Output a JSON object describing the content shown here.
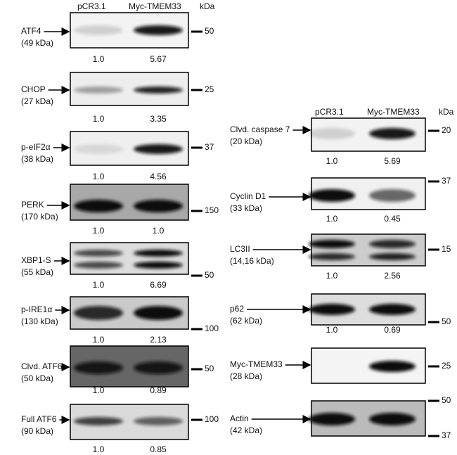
{
  "header": {
    "left_lanes": [
      "pCR3.1",
      "Myc-TMEM33"
    ],
    "left_unit": "kDa",
    "right_lanes": [
      "pCR3.1",
      "Myc-TMEM33"
    ],
    "right_unit": "kDa"
  },
  "left_blots": [
    {
      "protein": "ATF4",
      "size": "(49 kDa)",
      "markers": [
        "50"
      ],
      "quantities": [
        "1.0",
        "5.67"
      ]
    },
    {
      "protein": "CHOP",
      "size": "(27 kDa)",
      "markers": [
        "25"
      ],
      "quantities": [
        "1.0",
        "3.35"
      ]
    },
    {
      "protein": "p-eIF2α",
      "size": "(38 kDa)",
      "markers": [
        "37"
      ],
      "quantities": [
        "1.0",
        "4.56"
      ]
    },
    {
      "protein": "PERK",
      "size": "(170 kDa)",
      "markers": [
        "150"
      ],
      "quantities": [
        "1.0",
        "1.0"
      ]
    },
    {
      "protein": "XBP1-S",
      "size": "(55 kDa)",
      "markers": [
        "50"
      ],
      "quantities": [
        "1.0",
        "6.69"
      ]
    },
    {
      "protein": "p-IRE1α",
      "size": "(130 kDa)",
      "markers": [
        "100"
      ],
      "quantities": [
        "1.0",
        "2.13"
      ]
    },
    {
      "protein": "Clvd. ATF6",
      "size": "(50 kDa)",
      "markers": [
        "50"
      ],
      "quantities": [
        "1.0",
        "0.89"
      ]
    },
    {
      "protein": "Full ATF6",
      "size": "(90 kDa)",
      "markers": [
        "100"
      ],
      "quantities": [
        "1.0",
        "0.85"
      ]
    }
  ],
  "right_blots": [
    {
      "protein": "Clvd. caspase 7",
      "size": "(20 kDa)",
      "markers": [
        "20"
      ],
      "quantities": [
        "1.0",
        "5.69"
      ]
    },
    {
      "protein": "Cyclin D1",
      "size": "(33 kDa)",
      "markers": [
        "37"
      ],
      "quantities": [
        "1.0",
        "0.45"
      ]
    },
    {
      "protein": "LC3II",
      "size": "(14,16 kDa)",
      "markers": [
        "15"
      ],
      "quantities": [
        "1.0",
        "2.56"
      ]
    },
    {
      "protein": "p62",
      "size": "(62 kDa)",
      "markers": [
        "50"
      ],
      "quantities": [
        "1.0",
        "0.69"
      ]
    },
    {
      "protein": "Myc-TMEM33",
      "size": "(28 kDa)",
      "markers": [
        "25"
      ]
    },
    {
      "protein": "Actin",
      "size": "(42 kDa)",
      "markers": [
        "50",
        "37"
      ]
    }
  ]
}
